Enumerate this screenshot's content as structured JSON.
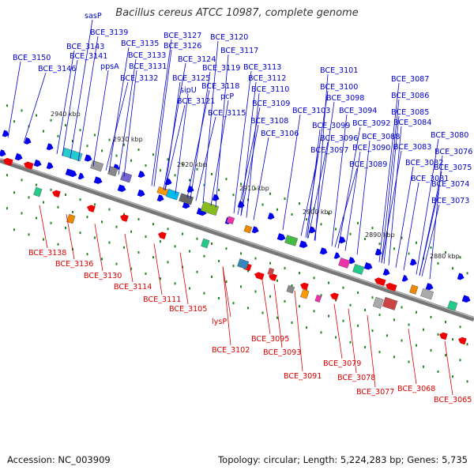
{
  "title": "Bacillus cereus ATCC 10987, complete genome",
  "footer": {
    "accession": "Accession: NC_003909",
    "summary": "Topology: circular; Length: 5,224,283 bp; Genes: 5,735"
  },
  "colors": {
    "forward_label": "#0000cc",
    "reverse_label": "#dd0000",
    "forward_arrow": "#0000ee",
    "reverse_arrow": "#ee0000",
    "backbone": "#777777",
    "tick": "#228822"
  },
  "ruler_labels": [
    "2940 kbp",
    "2930 kbp",
    "2920 kbp",
    "2910 kbp",
    "2900 kbp",
    "2890 kbp",
    "2880 kbp"
  ],
  "forward_labels": [
    "sasP",
    "BCE_3139",
    "BCE_3143",
    "BCE_3141",
    "BCE_3150",
    "BCE_3146",
    "BCE_3135",
    "BCE_3133",
    "ppsA",
    "BCE_3131",
    "BCE_3132",
    "BCE_3127",
    "BCE_3126",
    "BCE_3120",
    "BCE_3117",
    "BCE_3124",
    "BCE_3119",
    "BCE_3113",
    "BCE_3125",
    "sipU",
    "BCE_3118",
    "BCE_3121",
    "pcP",
    "BCE_3112",
    "BCE_3110",
    "BCE_3109",
    "BCE_3115",
    "BCE_3108",
    "BCE_3106",
    "BCE_3101",
    "BCE_3100",
    "BCE_3098",
    "BCE_3103",
    "BCE_3094",
    "BCE_3099",
    "BCE_3092",
    "BCE_3096",
    "BCE_3097",
    "BCE_3090",
    "BCE_3088",
    "BCE_3089",
    "BCE_3087",
    "BCE_3086",
    "BCE_3085",
    "BCE_3084",
    "BCE_3080",
    "BCE_3083",
    "BCE_3082",
    "BCE_3081",
    "BCE_3076",
    "BCE_3075",
    "BCE_3074",
    "BCE_3073"
  ],
  "reverse_labels": [
    "BCE_3138",
    "BCE_3136",
    "BCE_3130",
    "BCE_3114",
    "BCE_3111",
    "BCE_3105",
    "lysP",
    "BCE_3102",
    "BCE_3095",
    "BCE_3093",
    "BCE_3091",
    "BCE_3079",
    "BCE_3078",
    "BCE_3077",
    "BCE_3068",
    "BCE_3065"
  ]
}
